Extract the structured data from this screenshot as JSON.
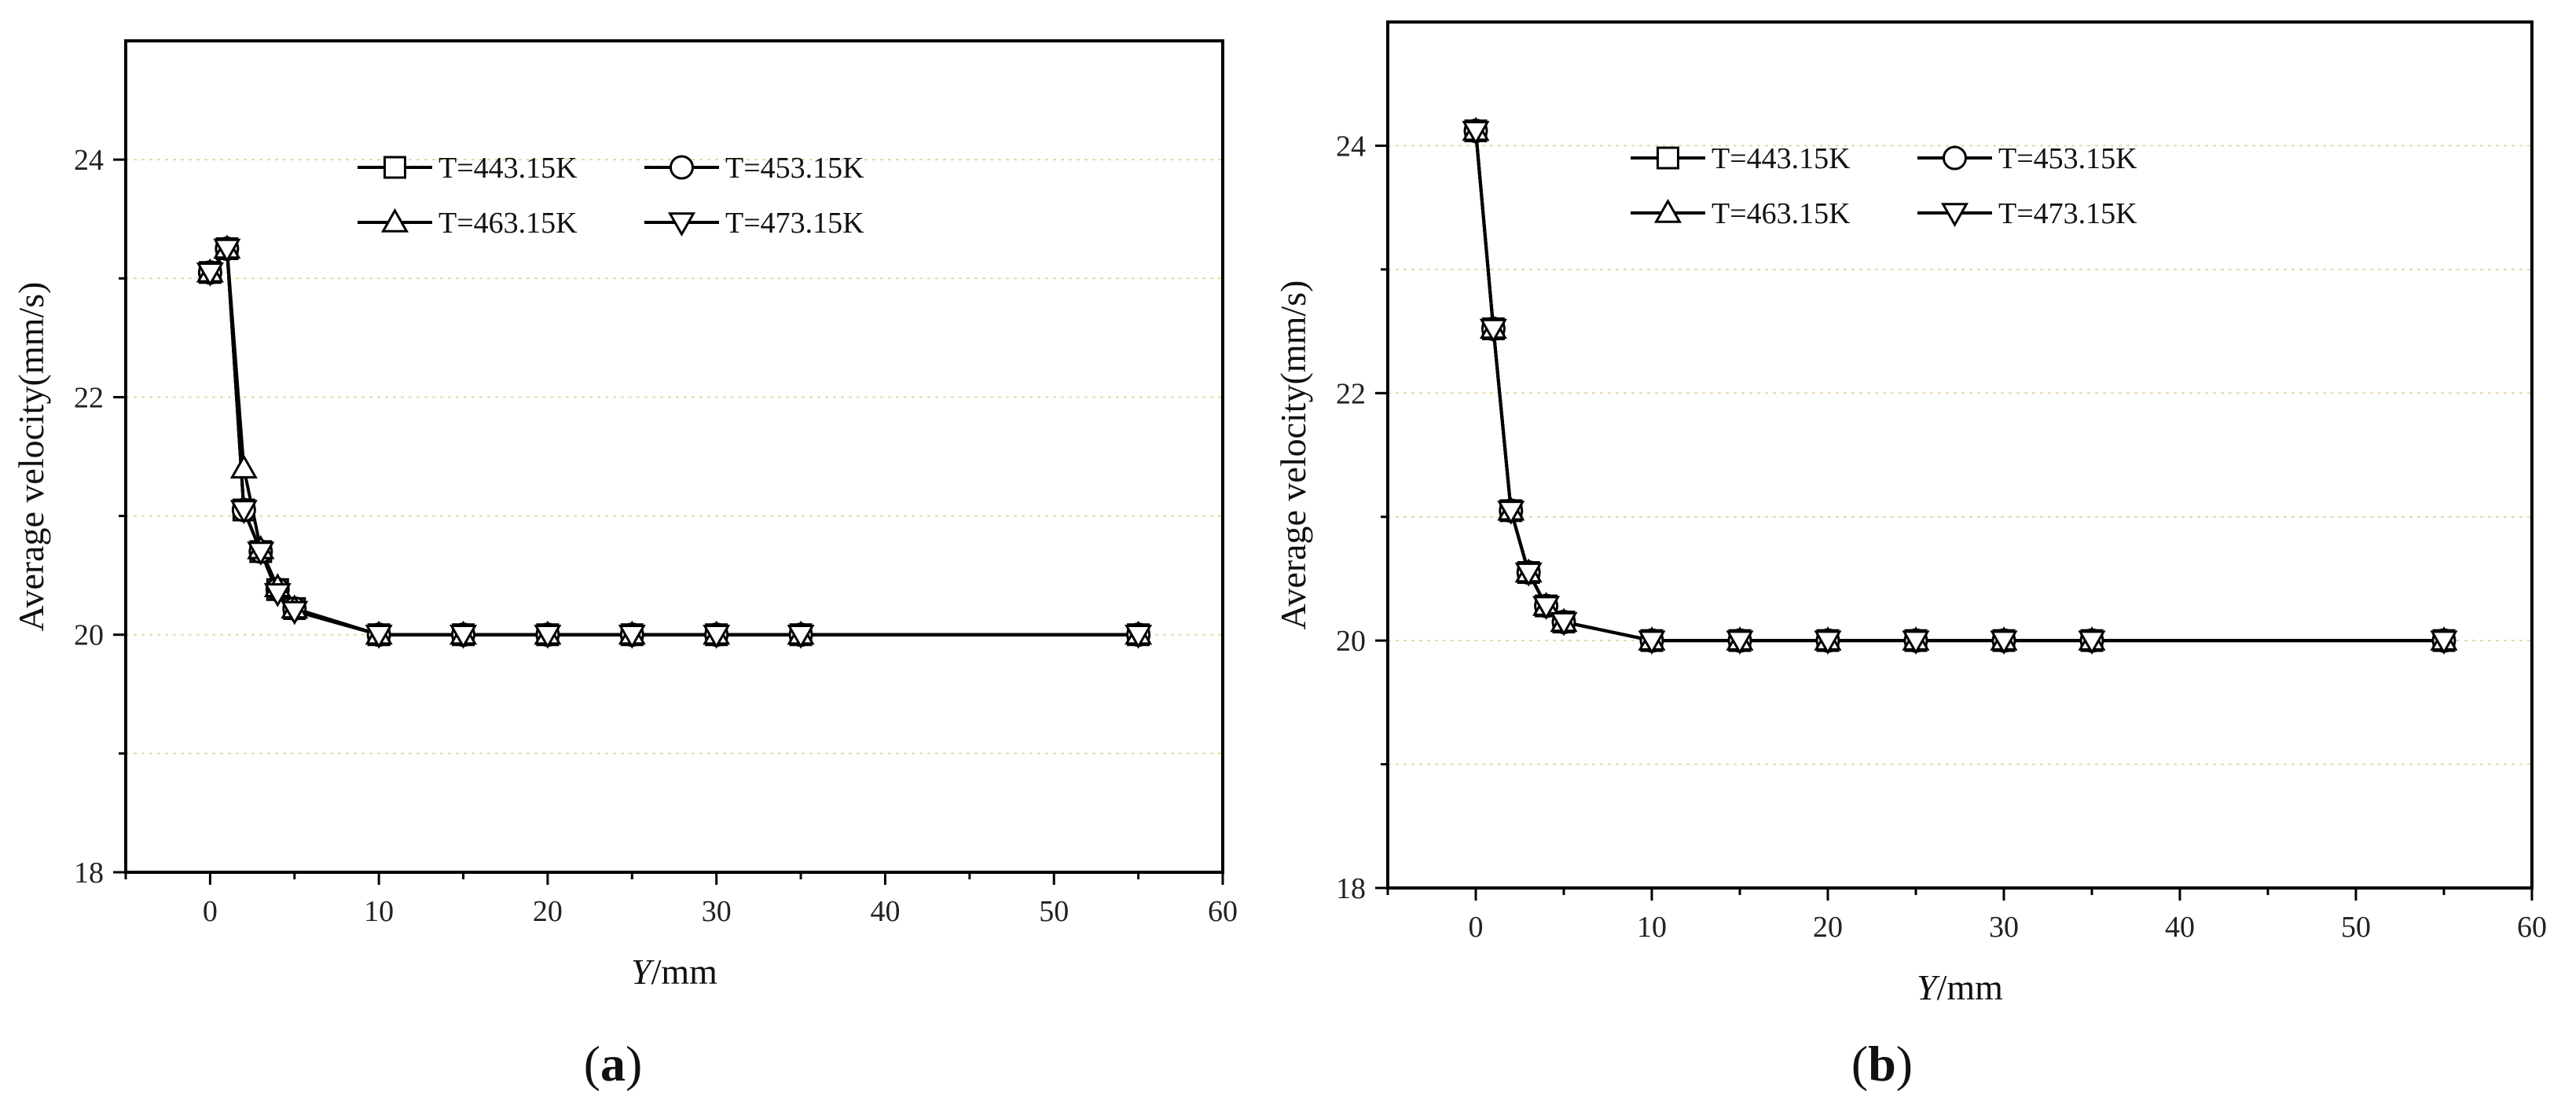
{
  "figure": {
    "panels_note": "two panels"
  },
  "chart_data": [
    {
      "type": "line",
      "panel_label": "(a)",
      "panel_label_letter": "a",
      "xlabel_italic": "Y",
      "xlabel_rest": "/mm",
      "ylabel": "Average velocity(mm/s)",
      "xlim": [
        -5,
        60
      ],
      "ylim": [
        18,
        25
      ],
      "xticks": [
        0,
        10,
        20,
        30,
        40,
        50,
        60
      ],
      "yticks": [
        18,
        20,
        22,
        24
      ],
      "grid_y": [
        19,
        20,
        21,
        22,
        23,
        24
      ],
      "grid": true,
      "legend_position": "top-center",
      "x": [
        0,
        1,
        2,
        3,
        4,
        5,
        10,
        15,
        20,
        25,
        30,
        35,
        55
      ],
      "series": [
        {
          "name": "T=443.15K",
          "marker": "square",
          "values": [
            23.05,
            23.25,
            21.05,
            20.7,
            20.38,
            20.22,
            20.0,
            20.0,
            20.0,
            20.0,
            20.0,
            20.0,
            20.0
          ]
        },
        {
          "name": "T=453.15K",
          "marker": "circle",
          "values": [
            23.05,
            23.25,
            21.05,
            20.7,
            20.38,
            20.22,
            20.0,
            20.0,
            20.0,
            20.0,
            20.0,
            20.0,
            20.0
          ]
        },
        {
          "name": "T=463.15K",
          "marker": "triangle-up",
          "values": [
            23.05,
            23.25,
            21.4,
            20.72,
            20.4,
            20.22,
            20.0,
            20.0,
            20.0,
            20.0,
            20.0,
            20.0,
            20.0
          ]
        },
        {
          "name": "T=473.15K",
          "marker": "triangle-down",
          "values": [
            23.05,
            23.25,
            21.05,
            20.7,
            20.35,
            20.2,
            20.0,
            20.0,
            20.0,
            20.0,
            20.0,
            20.0,
            20.0
          ]
        }
      ]
    },
    {
      "type": "line",
      "panel_label": "(b)",
      "panel_label_letter": "b",
      "xlabel_italic": "Y",
      "xlabel_rest": "/mm",
      "ylabel": "Average velocity(mm/s)",
      "xlim": [
        -5,
        60
      ],
      "ylim": [
        18,
        25
      ],
      "xticks": [
        0,
        10,
        20,
        30,
        40,
        50,
        60
      ],
      "yticks": [
        18,
        20,
        22,
        24
      ],
      "grid_y": [
        19,
        20,
        21,
        22,
        23,
        24
      ],
      "grid": true,
      "legend_position": "top-center",
      "x": [
        0,
        1,
        2,
        3,
        4,
        5,
        10,
        15,
        20,
        25,
        30,
        35,
        55
      ],
      "series": [
        {
          "name": "T=443.15K",
          "marker": "square",
          "values": [
            24.12,
            22.52,
            21.05,
            20.55,
            20.28,
            20.15,
            20.0,
            20.0,
            20.0,
            20.0,
            20.0,
            20.0,
            20.0
          ]
        },
        {
          "name": "T=453.15K",
          "marker": "circle",
          "values": [
            24.12,
            22.52,
            21.05,
            20.55,
            20.28,
            20.15,
            20.0,
            20.0,
            20.0,
            20.0,
            20.0,
            20.0,
            20.0
          ]
        },
        {
          "name": "T=463.15K",
          "marker": "triangle-up",
          "values": [
            24.12,
            22.52,
            21.05,
            20.55,
            20.28,
            20.15,
            20.0,
            20.0,
            20.0,
            20.0,
            20.0,
            20.0,
            20.0
          ]
        },
        {
          "name": "T=473.15K",
          "marker": "triangle-down",
          "values": [
            24.12,
            22.52,
            21.05,
            20.55,
            20.28,
            20.15,
            20.0,
            20.0,
            20.0,
            20.0,
            20.0,
            20.0,
            20.0
          ]
        }
      ]
    }
  ],
  "colors": {
    "line": "#000000",
    "grid": "#e6d9a8",
    "axis": "#000000",
    "text": "#111111"
  }
}
